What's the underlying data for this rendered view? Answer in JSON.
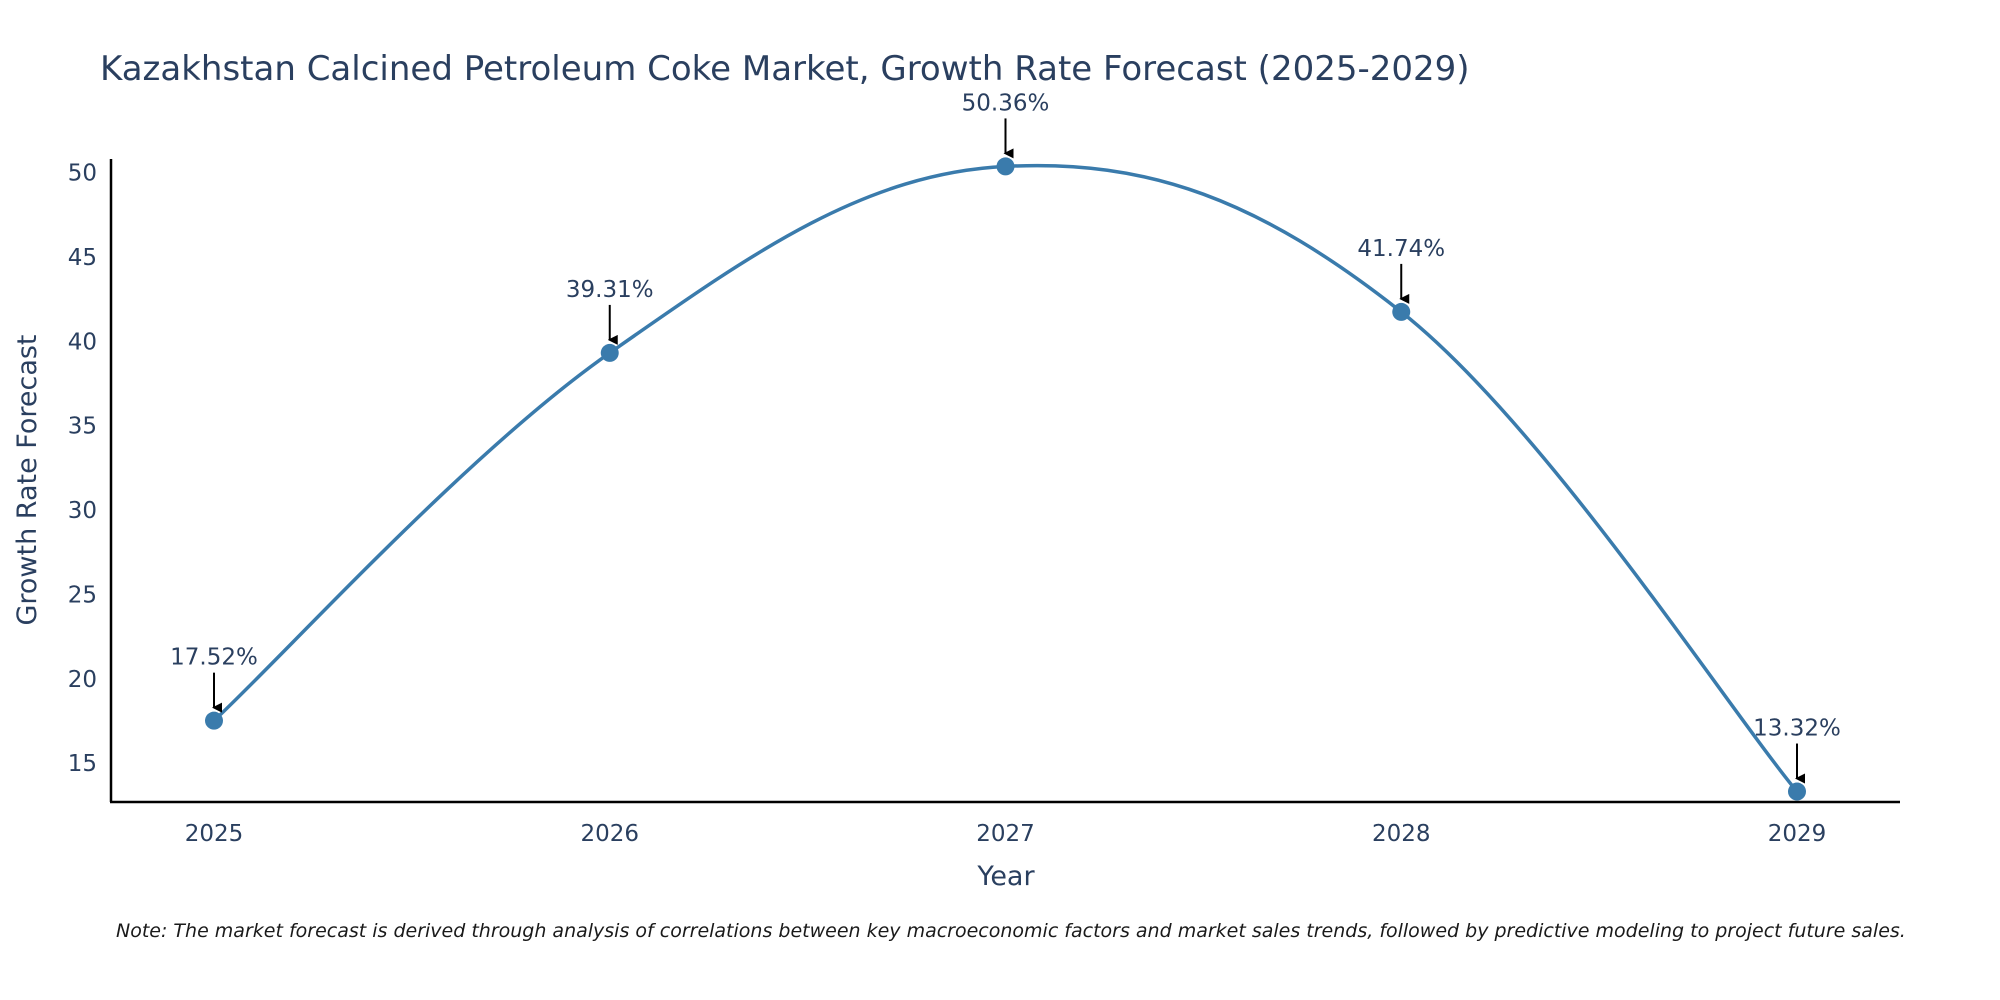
{
  "chart_data": {
    "type": "line",
    "title": "Kazakhstan Calcined Petroleum Coke Market, Growth Rate Forecast (2025-2029)",
    "xlabel": "Year",
    "ylabel": "Growth Rate Forecast",
    "categories": [
      "2025",
      "2026",
      "2027",
      "2028",
      "2029"
    ],
    "values": [
      17.52,
      39.31,
      50.36,
      41.74,
      13.32
    ],
    "data_labels": [
      "17.52%",
      "39.31%",
      "50.36%",
      "41.74%",
      "13.32%"
    ],
    "y_ticks": [
      15,
      20,
      25,
      30,
      35,
      40,
      45,
      50
    ],
    "y_tick_labels": [
      "15",
      "20",
      "25",
      "30",
      "35",
      "40",
      "45",
      "50"
    ],
    "ylim": [
      12.7,
      50.8
    ],
    "grid": false,
    "legend": "none",
    "line_shape": "spline",
    "series_color": "#3a7bac",
    "marker_color": "#3a7bac",
    "annotation_arrow_color": "#000000",
    "axis_color": "#000000",
    "text_color": "#2a3f5f"
  },
  "note": "Note: The market forecast is derived through analysis of correlations between key macroeconomic factors and market sales trends, followed by predictive modeling to project future sales."
}
